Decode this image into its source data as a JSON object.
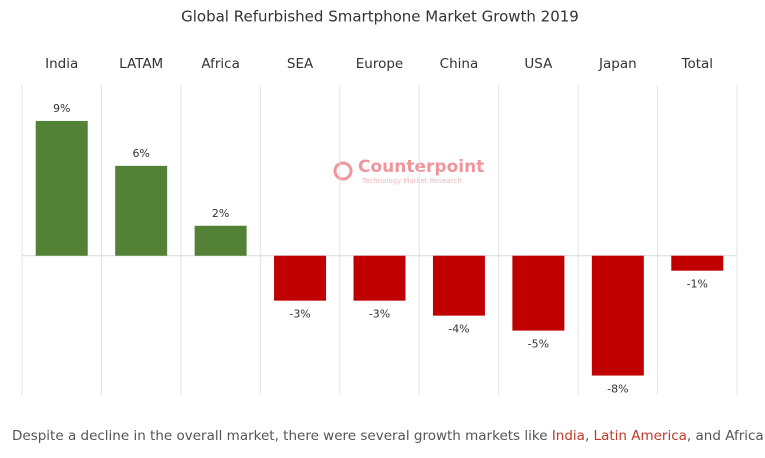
{
  "chart_data": {
    "type": "bar",
    "title": "Global Refurbished Smartphone Market Growth 2019",
    "categories": [
      "India",
      "LATAM",
      "Africa",
      "SEA",
      "Europe",
      "China",
      "USA",
      "Japan",
      "Total"
    ],
    "values": [
      9,
      6,
      2,
      -3,
      -3,
      -4,
      -5,
      -8,
      -1
    ],
    "value_labels": [
      "9%",
      "6%",
      "2%",
      "-3%",
      "-3%",
      "-4%",
      "-5%",
      "-8%",
      "-1%"
    ],
    "positive_color": "#538135",
    "negative_color": "#c00000",
    "ylim": [
      -9.3,
      11.4
    ],
    "grid": true,
    "watermark": {
      "name": "Counterpoint",
      "tagline": "Technology Market Research"
    }
  },
  "caption": [
    "Despite a decline in the overall market, there were several growth markets like ",
    "India",
    ", ",
    "Latin America",
    ", and Africa."
  ]
}
